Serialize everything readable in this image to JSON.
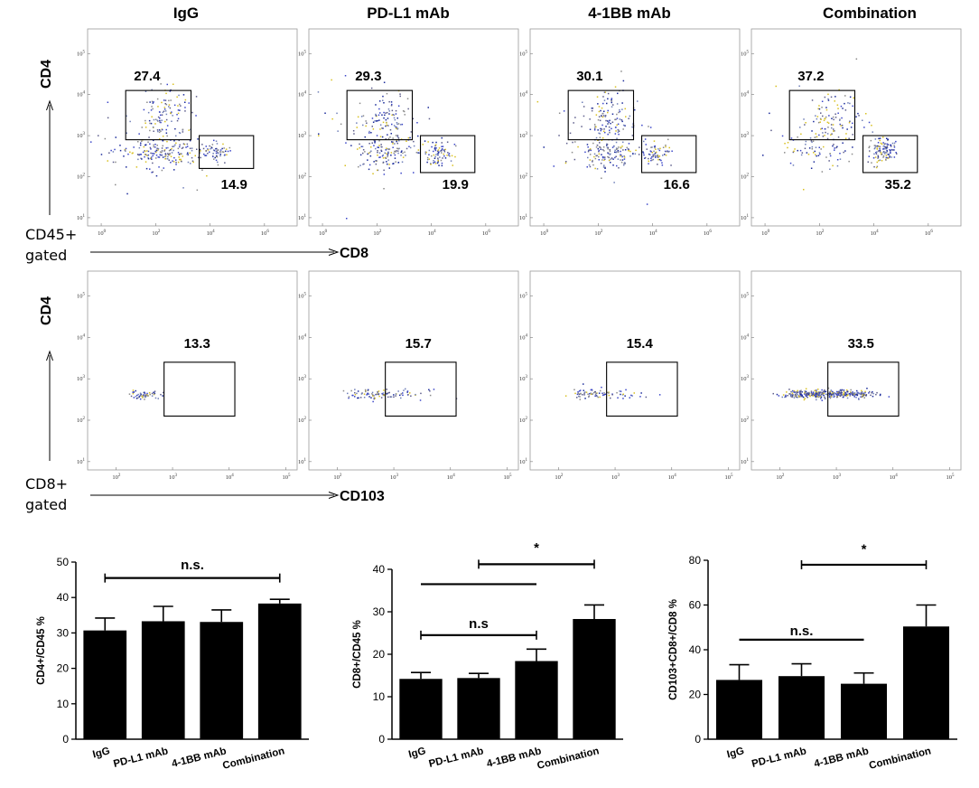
{
  "chart_data": [
    {
      "type": "scatter",
      "title": "CD45+ gated flow cytometry: CD4 vs CD8",
      "xlabel": "CD8",
      "ylabel": "CD4",
      "gating_label": "CD45+ gated",
      "x_tick_exps": [
        0,
        2,
        4,
        6
      ],
      "y_tick_exps": [
        1,
        2,
        3,
        4,
        5
      ],
      "xlim_log10": [
        -0.5,
        7.2
      ],
      "ylim_log10": [
        0.8,
        5.6
      ],
      "panels": [
        {
          "name": "IgG",
          "gates": [
            {
              "label": "27.4",
              "value": 27.4
            },
            {
              "label": "14.9",
              "value": 14.9
            }
          ]
        },
        {
          "name": "PD-L1 mAb",
          "gates": [
            {
              "label": "29.3",
              "value": 29.3
            },
            {
              "label": "19.9",
              "value": 19.9
            }
          ]
        },
        {
          "name": "4-1BB mAb",
          "gates": [
            {
              "label": "30.1",
              "value": 30.1
            },
            {
              "label": "16.6",
              "value": 16.6
            }
          ]
        },
        {
          "name": "Combination",
          "gates": [
            {
              "label": "37.2",
              "value": 37.2
            },
            {
              "label": "35.2",
              "value": 35.2
            }
          ]
        }
      ]
    },
    {
      "type": "scatter",
      "title": "CD8+ gated flow cytometry: CD4 vs CD103",
      "xlabel": "CD103",
      "ylabel": "CD4",
      "gating_label": "CD8+ gated",
      "x_tick_exps": [
        2,
        3,
        4,
        5
      ],
      "y_tick_exps": [
        1,
        2,
        3,
        4,
        5
      ],
      "xlim_log10": [
        1.5,
        5.2
      ],
      "ylim_log10": [
        0.8,
        5.6
      ],
      "panels": [
        {
          "name": "IgG",
          "gates": [
            {
              "label": "13.3",
              "value": 13.3
            }
          ]
        },
        {
          "name": "PD-L1 mAb",
          "gates": [
            {
              "label": "15.7",
              "value": 15.7
            }
          ]
        },
        {
          "name": "4-1BB mAb",
          "gates": [
            {
              "label": "15.4",
              "value": 15.4
            }
          ]
        },
        {
          "name": "Combination",
          "gates": [
            {
              "label": "33.5",
              "value": 33.5
            }
          ]
        }
      ]
    },
    {
      "type": "bar",
      "categories": [
        "IgG",
        "PD-L1 mAb",
        "4-1BB mAb",
        "Combination"
      ],
      "values": [
        30.7,
        33.3,
        33.1,
        38.3
      ],
      "errors": [
        3.5,
        4.2,
        3.4,
        1.2
      ],
      "ylabel": "CD4+/CD45 %",
      "ylim": [
        0,
        50
      ],
      "yticks": [
        0,
        10,
        20,
        30,
        40,
        50
      ],
      "significance": [
        {
          "from": "IgG",
          "to": "Combination",
          "label": "n.s."
        }
      ]
    },
    {
      "type": "bar",
      "categories": [
        "IgG",
        "PD-L1 mAb",
        "4-1BB mAb",
        "Combination"
      ],
      "values": [
        14.2,
        14.4,
        18.4,
        28.3
      ],
      "errors": [
        1.5,
        1.1,
        2.8,
        3.3
      ],
      "ylabel": "CD8+/CD45 %",
      "ylim": [
        0,
        40
      ],
      "yticks": [
        0,
        10,
        20,
        30,
        40
      ],
      "significance": [
        {
          "from": "IgG",
          "to": "4-1BB mAb",
          "label": "n.s"
        },
        {
          "from": "IgG",
          "to": "4-1BB mAb",
          "label": ""
        },
        {
          "from": "PD-L1 mAb",
          "to": "Combination",
          "label": "*"
        }
      ]
    },
    {
      "type": "bar",
      "categories": [
        "IgG",
        "PD-L1 mAb",
        "4-1BB mAb",
        "Combination"
      ],
      "values": [
        26.5,
        28.2,
        24.8,
        50.4
      ],
      "errors": [
        6.8,
        5.5,
        4.8,
        9.6
      ],
      "ylabel": "CD103+CD8+/CD8 %",
      "ylim": [
        0,
        80
      ],
      "yticks": [
        0,
        20,
        40,
        60,
        80
      ],
      "significance": [
        {
          "from": "IgG",
          "to": "4-1BB mAb",
          "label": "n.s."
        },
        {
          "from": "PD-L1 mAb",
          "to": "Combination",
          "label": "*"
        }
      ]
    }
  ]
}
